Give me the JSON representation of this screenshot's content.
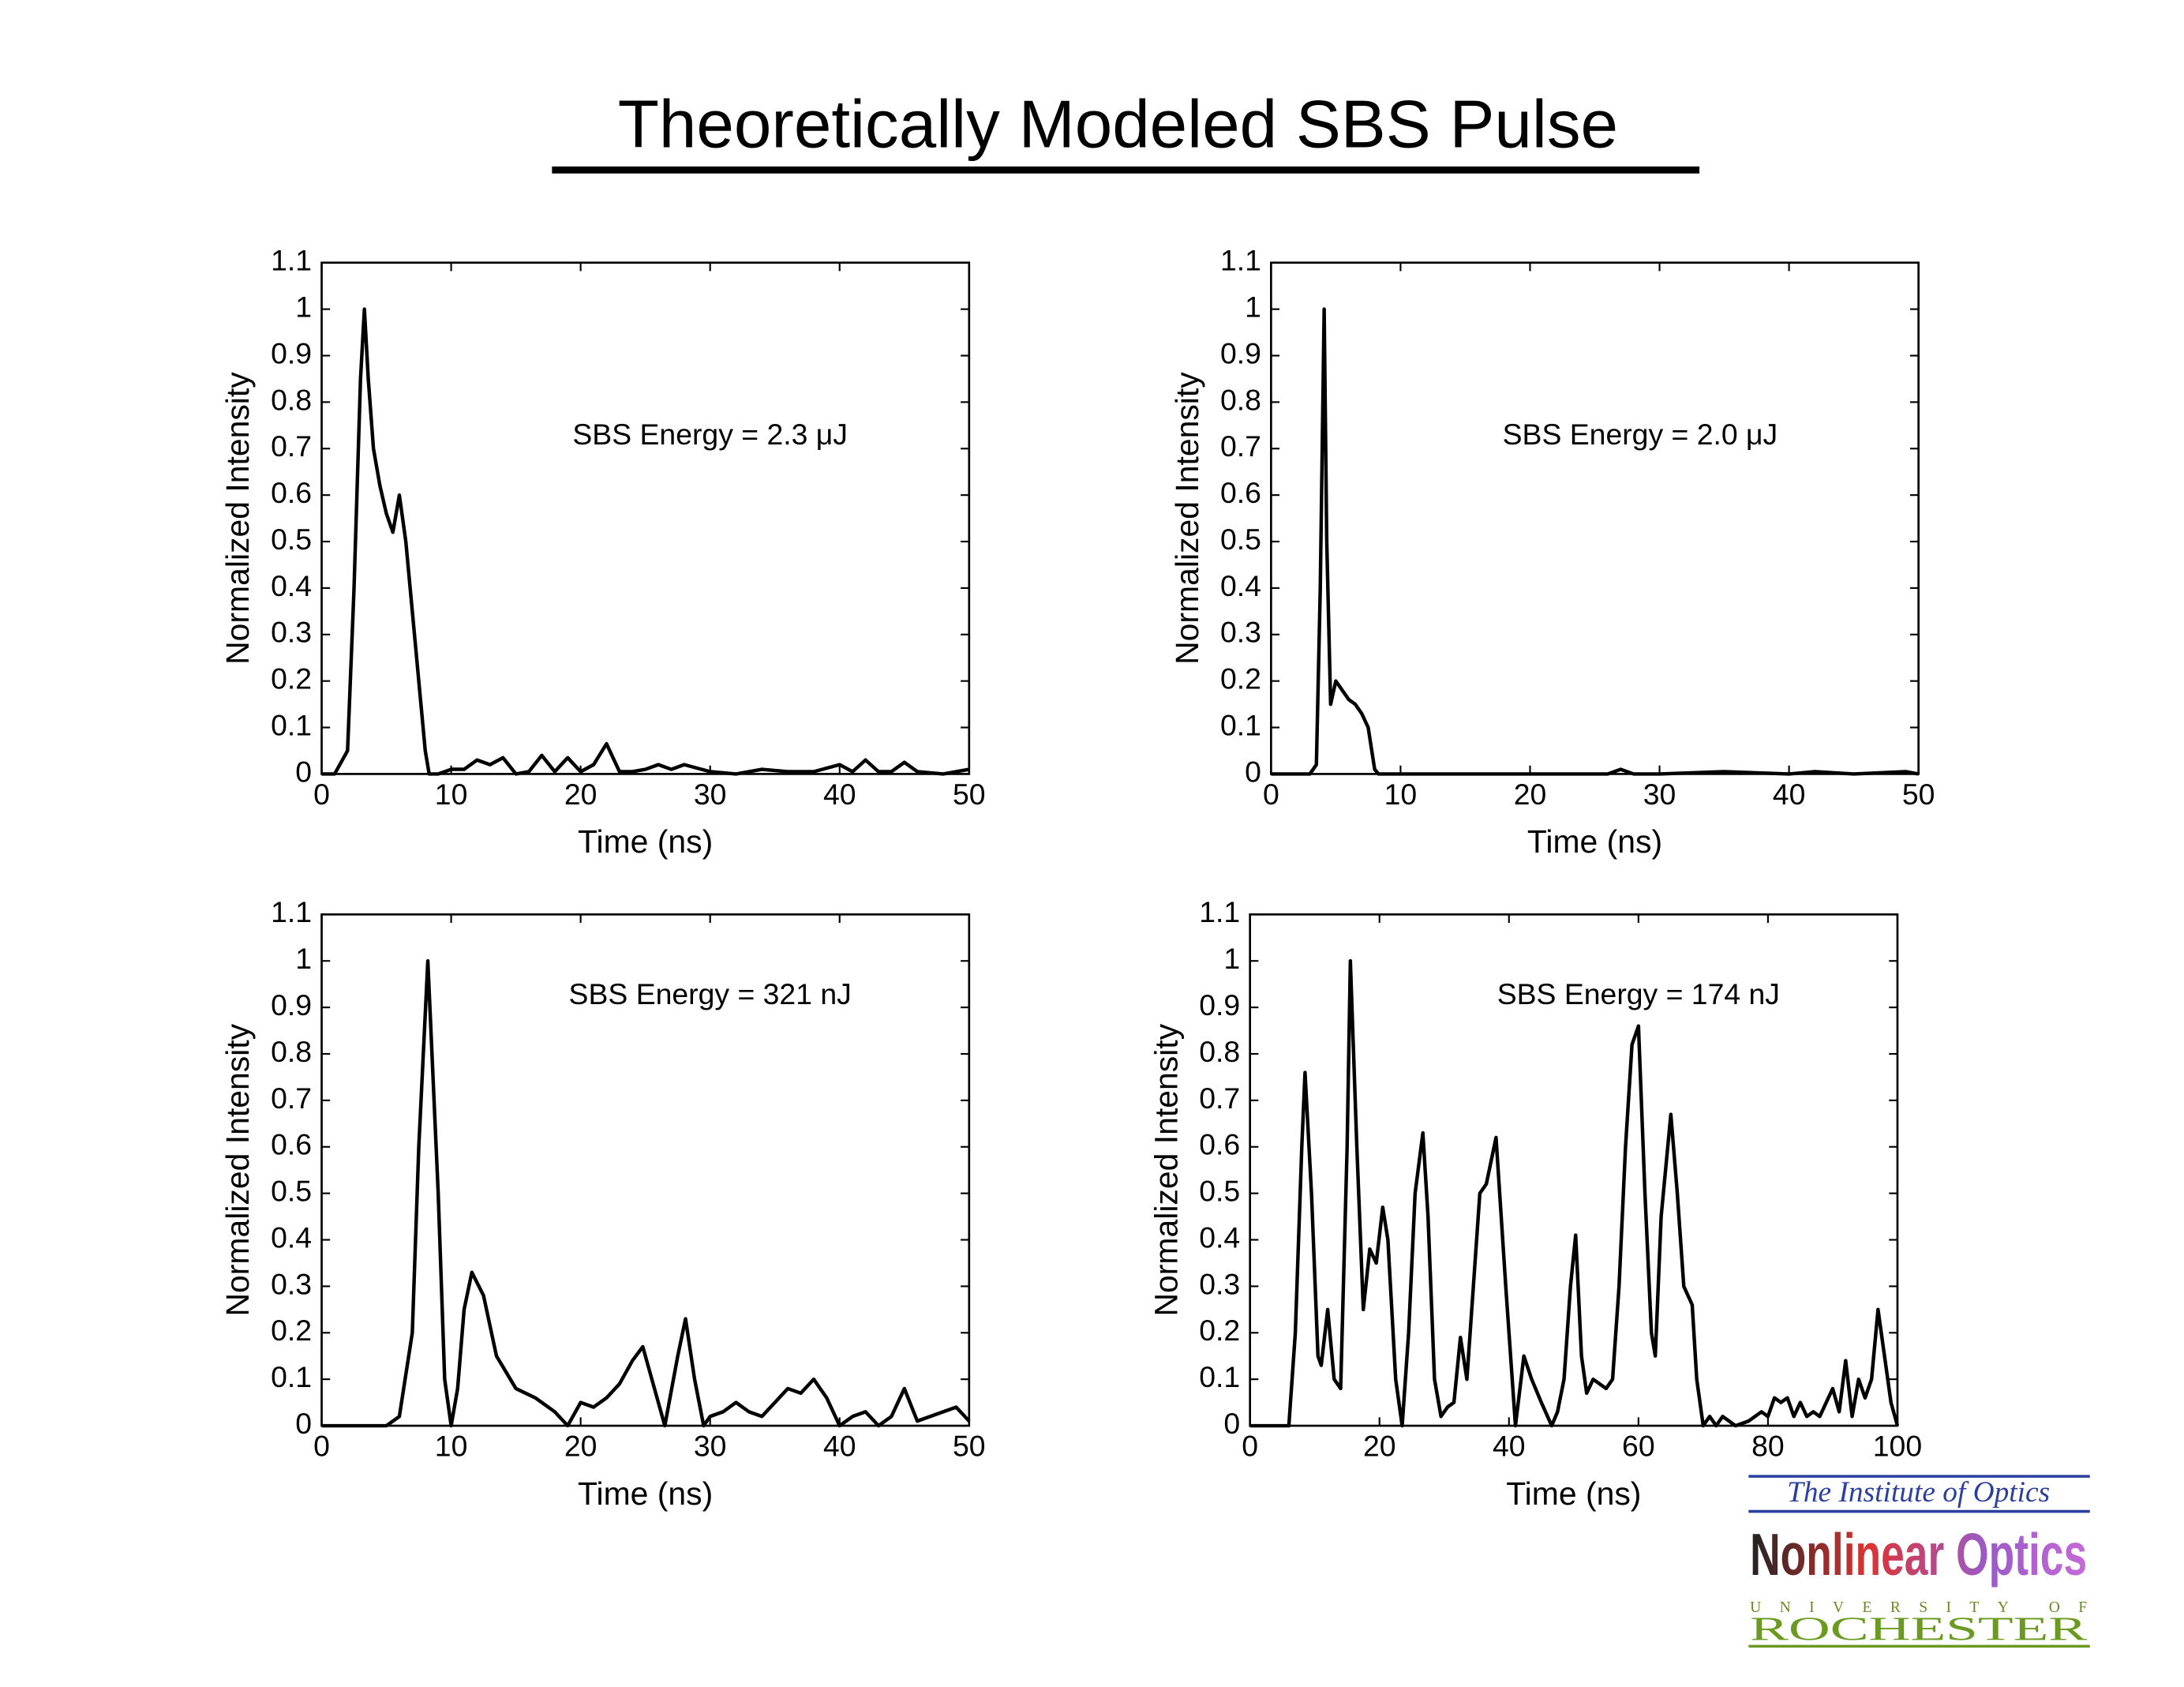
{
  "header": {
    "title": "Theoretically Modeled SBS Pulse"
  },
  "logo": {
    "line1": "The Institute of Optics",
    "line2": "Nonlinear Optics",
    "line3": "UNIVERSITY OF",
    "line4": "ROCHESTER"
  },
  "chart_data": [
    {
      "type": "line",
      "annotation": "SBS Energy = 2.3 μJ",
      "x_label": "Time (ns)",
      "y_label": "Normalized Intensity",
      "color": "#000000",
      "xlim": [
        0,
        50
      ],
      "xticks": [
        0,
        10,
        20,
        30,
        40,
        50
      ],
      "ylim": [
        0,
        1.1
      ],
      "yticks": [
        0,
        0.1,
        0.2,
        0.3,
        0.4,
        0.5,
        0.6,
        0.7,
        0.8,
        0.9,
        1,
        1.1
      ],
      "x": [
        0,
        1,
        2,
        2.5,
        3,
        3.3,
        3.6,
        4,
        4.5,
        5,
        5.5,
        6,
        6.5,
        7,
        7.5,
        8,
        8.3,
        9,
        10,
        11,
        12,
        13,
        14,
        15,
        16,
        17,
        18,
        19,
        20,
        21,
        22,
        23,
        24,
        25,
        26,
        27,
        28,
        30,
        32,
        34,
        36,
        38,
        40,
        41,
        42,
        43,
        44,
        45,
        46,
        48,
        50
      ],
      "values": [
        0,
        0,
        0.05,
        0.4,
        0.85,
        1.0,
        0.85,
        0.7,
        0.62,
        0.56,
        0.52,
        0.6,
        0.5,
        0.35,
        0.2,
        0.05,
        0,
        0,
        0.01,
        0.01,
        0.03,
        0.02,
        0.035,
        0,
        0.005,
        0.04,
        0.005,
        0.035,
        0.005,
        0.02,
        0.065,
        0.005,
        0.005,
        0.01,
        0.02,
        0.01,
        0.02,
        0.005,
        0,
        0.01,
        0.005,
        0.005,
        0.02,
        0.005,
        0.03,
        0.005,
        0.005,
        0.025,
        0.005,
        0,
        0.01
      ]
    },
    {
      "type": "line",
      "annotation": "SBS Energy = 2.0 μJ",
      "x_label": "Time (ns)",
      "y_label": "Normalized Intensity",
      "color": "#000000",
      "xlim": [
        0,
        50
      ],
      "xticks": [
        0,
        10,
        20,
        30,
        40,
        50
      ],
      "ylim": [
        0,
        1.1
      ],
      "yticks": [
        0,
        0.1,
        0.2,
        0.3,
        0.4,
        0.5,
        0.6,
        0.7,
        0.8,
        0.9,
        1,
        1.1
      ],
      "x": [
        0,
        3,
        3.5,
        3.8,
        4.1,
        4.3,
        4.6,
        5,
        5.5,
        6,
        6.5,
        7,
        7.5,
        8,
        8.3,
        10,
        20,
        26,
        27,
        28,
        30,
        35,
        40,
        42,
        45,
        49,
        50
      ],
      "values": [
        0,
        0,
        0.02,
        0.4,
        1.0,
        0.5,
        0.15,
        0.2,
        0.18,
        0.16,
        0.15,
        0.13,
        0.1,
        0.01,
        0,
        0,
        0,
        0,
        0.01,
        0,
        0,
        0.005,
        0,
        0.005,
        0,
        0.005,
        0
      ]
    },
    {
      "type": "line",
      "annotation": "SBS Energy = 321 nJ",
      "x_label": "Time (ns)",
      "y_label": "Normalized Intensity",
      "color": "#000000",
      "xlim": [
        0,
        50
      ],
      "xticks": [
        0,
        10,
        20,
        30,
        40,
        50
      ],
      "ylim": [
        0,
        1.1
      ],
      "yticks": [
        0,
        0.1,
        0.2,
        0.3,
        0.4,
        0.5,
        0.6,
        0.7,
        0.8,
        0.9,
        1,
        1.1
      ],
      "x": [
        0,
        5,
        6,
        7,
        7.5,
        8.2,
        9,
        9.5,
        10,
        10.5,
        11,
        11.6,
        12.5,
        13.5,
        15,
        16.5,
        18,
        19,
        20,
        21,
        22,
        23,
        24,
        24.8,
        25.5,
        26.5,
        27.5,
        28.1,
        28.8,
        29.5,
        30,
        31,
        32,
        33,
        34,
        35,
        36,
        37,
        38,
        39,
        40,
        41,
        42,
        43,
        44,
        45,
        46,
        47,
        48,
        49,
        50
      ],
      "values": [
        0,
        0,
        0.02,
        0.2,
        0.6,
        1.0,
        0.5,
        0.1,
        0,
        0.08,
        0.25,
        0.33,
        0.28,
        0.15,
        0.08,
        0.06,
        0.03,
        0,
        0.05,
        0.04,
        0.06,
        0.09,
        0.14,
        0.17,
        0.1,
        0,
        0.15,
        0.23,
        0.1,
        0,
        0.02,
        0.03,
        0.05,
        0.03,
        0.02,
        0.05,
        0.08,
        0.07,
        0.1,
        0.06,
        0,
        0.02,
        0.03,
        0,
        0.02,
        0.08,
        0.01,
        0.02,
        0.03,
        0.04,
        0.01
      ]
    },
    {
      "type": "line",
      "annotation": "SBS Energy = 174 nJ",
      "x_label": "Time (ns)",
      "y_label": "Normalized Intensity",
      "color": "#000000",
      "xlim": [
        0,
        100
      ],
      "xticks": [
        0,
        20,
        40,
        60,
        80,
        100
      ],
      "ylim": [
        0,
        1.1
      ],
      "yticks": [
        0,
        0.1,
        0.2,
        0.3,
        0.4,
        0.5,
        0.6,
        0.7,
        0.8,
        0.9,
        1,
        1.1
      ],
      "x": [
        0,
        6,
        7,
        8,
        8.5,
        9.5,
        10.5,
        11,
        12,
        13,
        14,
        15,
        15.5,
        16.5,
        17.5,
        18.5,
        19.5,
        20.5,
        21.3,
        22.5,
        23.5,
        24.5,
        25.5,
        26.7,
        27.5,
        28.5,
        29.5,
        30.5,
        31.5,
        32.5,
        33.5,
        34.5,
        35.5,
        36.5,
        38,
        39.5,
        41,
        42.3,
        43.5,
        45,
        46.6,
        47.5,
        48.5,
        49.5,
        50.3,
        51.2,
        52,
        53,
        54,
        55,
        56,
        57,
        58,
        59,
        60,
        61,
        62,
        62.6,
        63.5,
        65,
        66,
        67,
        68.3,
        69,
        70,
        71,
        72,
        73,
        75,
        77,
        79,
        80,
        81,
        82,
        83,
        84,
        85,
        86,
        87,
        88,
        89,
        90,
        91,
        92,
        93,
        94,
        95,
        96,
        97,
        98,
        99,
        100
      ],
      "values": [
        0,
        0,
        0.2,
        0.6,
        0.76,
        0.5,
        0.15,
        0.13,
        0.25,
        0.1,
        0.08,
        0.6,
        1.0,
        0.6,
        0.25,
        0.38,
        0.35,
        0.47,
        0.4,
        0.1,
        0,
        0.2,
        0.5,
        0.63,
        0.45,
        0.1,
        0.02,
        0.04,
        0.05,
        0.19,
        0.1,
        0.3,
        0.5,
        0.52,
        0.62,
        0.3,
        0,
        0.15,
        0.1,
        0.05,
        0,
        0.03,
        0.1,
        0.3,
        0.41,
        0.15,
        0.07,
        0.1,
        0.09,
        0.08,
        0.1,
        0.3,
        0.6,
        0.82,
        0.86,
        0.5,
        0.2,
        0.15,
        0.45,
        0.67,
        0.5,
        0.3,
        0.26,
        0.1,
        0,
        0.02,
        0,
        0.02,
        0,
        0.01,
        0.03,
        0.02,
        0.06,
        0.05,
        0.06,
        0.02,
        0.05,
        0.02,
        0.03,
        0.02,
        0.05,
        0.08,
        0.03,
        0.14,
        0.02,
        0.1,
        0.06,
        0.1,
        0.25,
        0.15,
        0.05,
        0
      ]
    }
  ]
}
